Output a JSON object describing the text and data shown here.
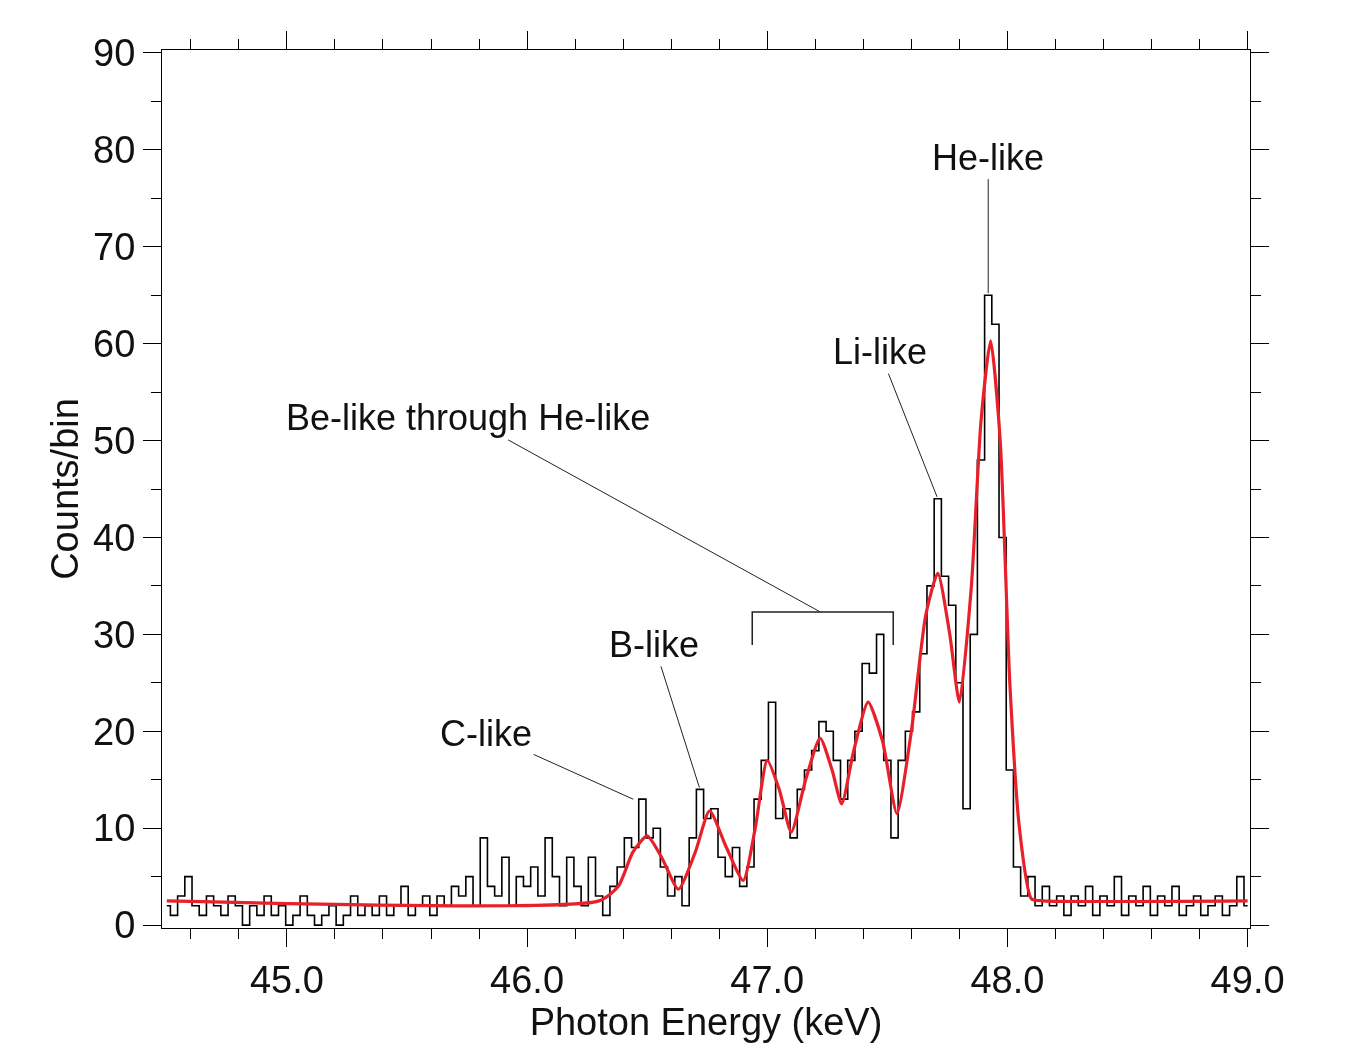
{
  "chart_data": {
    "type": "step",
    "xlabel": "Photon Energy (keV)",
    "ylabel": "Counts/bin",
    "xlim": [
      44.48,
      49.01
    ],
    "ylim": [
      -0.3,
      90.3
    ],
    "xticks": [
      {
        "value": 44.6,
        "label": null
      },
      {
        "value": 44.8,
        "label": null
      },
      {
        "value": 45.0,
        "label": "45.0"
      },
      {
        "value": 45.2,
        "label": null
      },
      {
        "value": 45.4,
        "label": null
      },
      {
        "value": 45.6,
        "label": null
      },
      {
        "value": 45.8,
        "label": null
      },
      {
        "value": 46.0,
        "label": "46.0"
      },
      {
        "value": 46.2,
        "label": null
      },
      {
        "value": 46.4,
        "label": null
      },
      {
        "value": 46.6,
        "label": null
      },
      {
        "value": 46.8,
        "label": null
      },
      {
        "value": 47.0,
        "label": "47.0"
      },
      {
        "value": 47.2,
        "label": null
      },
      {
        "value": 47.4,
        "label": null
      },
      {
        "value": 47.6,
        "label": null
      },
      {
        "value": 47.8,
        "label": null
      },
      {
        "value": 48.0,
        "label": "48.0"
      },
      {
        "value": 48.2,
        "label": null
      },
      {
        "value": 48.4,
        "label": null
      },
      {
        "value": 48.6,
        "label": null
      },
      {
        "value": 48.8,
        "label": null
      },
      {
        "value": 49.0,
        "label": "49.0"
      }
    ],
    "yticks": [
      0,
      {
        "value": 5,
        "label": null
      },
      10,
      {
        "value": 15,
        "label": null
      },
      20,
      {
        "value": 25,
        "label": null
      },
      30,
      {
        "value": 35,
        "label": null
      },
      40,
      {
        "value": 45,
        "label": null
      },
      50,
      {
        "value": 55,
        "label": null
      },
      60,
      {
        "value": 65,
        "label": null
      },
      70,
      {
        "value": 75,
        "label": null
      },
      80,
      {
        "value": 85,
        "label": null
      },
      90
    ],
    "series": [
      {
        "color": "#000000",
        "x": [
          44.5,
          44.53,
          44.56,
          44.59,
          44.62,
          44.65,
          44.68,
          44.71,
          44.74,
          44.77,
          44.8,
          44.83,
          44.86,
          44.89,
          44.92,
          44.95,
          44.98,
          45.01,
          45.04,
          45.07,
          45.1,
          45.13,
          45.16,
          45.19,
          45.22,
          45.25,
          45.28,
          45.31,
          45.34,
          45.37,
          45.4,
          45.43,
          45.46,
          45.49,
          45.52,
          45.55,
          45.58,
          45.61,
          45.64,
          45.67,
          45.7,
          45.73,
          45.76,
          45.79,
          45.82,
          45.85,
          45.88,
          45.91,
          45.94,
          45.97,
          46.0,
          46.03,
          46.06,
          46.09,
          46.12,
          46.15,
          46.18,
          46.21,
          46.24,
          46.27,
          46.3,
          46.33,
          46.36,
          46.39,
          46.42,
          46.45,
          46.48,
          46.51,
          46.54,
          46.57,
          46.6,
          46.63,
          46.66,
          46.69,
          46.72,
          46.75,
          46.78,
          46.81,
          46.84,
          46.87,
          46.9,
          46.93,
          46.96,
          46.99,
          47.02,
          47.05,
          47.08,
          47.11,
          47.14,
          47.17,
          47.2,
          47.23,
          47.26,
          47.29,
          47.32,
          47.35,
          47.38,
          47.41,
          47.44,
          47.47,
          47.5,
          47.53,
          47.56,
          47.59,
          47.62,
          47.65,
          47.68,
          47.71,
          47.74,
          47.77,
          47.8,
          47.83,
          47.86,
          47.89,
          47.92,
          47.95,
          47.98,
          48.01,
          48.04,
          48.07,
          48.1,
          48.13,
          48.16,
          48.19,
          48.22,
          48.25,
          48.28,
          48.31,
          48.34,
          48.37,
          48.4,
          48.43,
          48.46,
          48.49,
          48.52,
          48.55,
          48.58,
          48.61,
          48.64,
          48.67,
          48.7,
          48.73,
          48.76,
          48.79,
          48.82,
          48.85,
          48.88,
          48.91,
          48.94,
          48.97,
          49.0
        ],
        "values": [
          2,
          1,
          3,
          5,
          2,
          1,
          3,
          2,
          1,
          3,
          2,
          0,
          2,
          1,
          3,
          1,
          2,
          0,
          1,
          3,
          1,
          0,
          1,
          2,
          0,
          1,
          3,
          1,
          2,
          1,
          3,
          1,
          2,
          4,
          1,
          2,
          3,
          1,
          3,
          2,
          4,
          3,
          5,
          2,
          9,
          4,
          3,
          7,
          2,
          5,
          4,
          6,
          3,
          9,
          5,
          2,
          7,
          4,
          2,
          7,
          3,
          1,
          4,
          6,
          9,
          8,
          13,
          9,
          10,
          6,
          3,
          5,
          2,
          9,
          14,
          11,
          12,
          7,
          5,
          8,
          4,
          6,
          13,
          17,
          23,
          11,
          12,
          9,
          14,
          16,
          18,
          21,
          20,
          17,
          13,
          17,
          20,
          27,
          26,
          30,
          17,
          9,
          17,
          20,
          22,
          28,
          35,
          44,
          36,
          33,
          25,
          12,
          30,
          48,
          65,
          62,
          40,
          16,
          6,
          3,
          5,
          2,
          4,
          2,
          3,
          1,
          3,
          2,
          4,
          1,
          3,
          2,
          5,
          1,
          3,
          2,
          4,
          1,
          3,
          2,
          4,
          1,
          2,
          3,
          1,
          2,
          3,
          1,
          2,
          5,
          2
        ]
      },
      {
        "type": "line",
        "color": "#e8202a",
        "x": [
          44.5,
          46.3,
          46.38,
          46.44,
          46.5,
          46.56,
          46.63,
          46.7,
          46.76,
          46.83,
          46.9,
          46.95,
          47.0,
          47.05,
          47.1,
          47.16,
          47.22,
          47.27,
          47.31,
          47.36,
          47.42,
          47.48,
          47.54,
          47.6,
          47.66,
          47.71,
          47.76,
          47.8,
          47.85,
          47.89,
          47.93,
          47.97,
          48.01,
          48.05,
          48.1,
          48.15,
          49.0
        ],
        "values": [
          2.5,
          2.5,
          4,
          7.5,
          9.2,
          7,
          3.7,
          7.5,
          11.8,
          8,
          4.6,
          10,
          17,
          14,
          9.6,
          15,
          19.3,
          16,
          12.5,
          18,
          23,
          19,
          11.5,
          20,
          32,
          36.3,
          30,
          23,
          35,
          52,
          60.3,
          50,
          25,
          10,
          2.7,
          2.5,
          2.5
        ]
      }
    ],
    "annotations": [
      {
        "text": "C-like",
        "x": 46.45,
        "y": 12.9
      },
      {
        "text": "B-like",
        "x": 46.72,
        "y": 14
      },
      "Be-like through He-like",
      {
        "text": "Li-like",
        "x": 47.71,
        "y": 44
      },
      {
        "text": "He-like",
        "x": 47.92,
        "y": 65
      }
    ]
  }
}
